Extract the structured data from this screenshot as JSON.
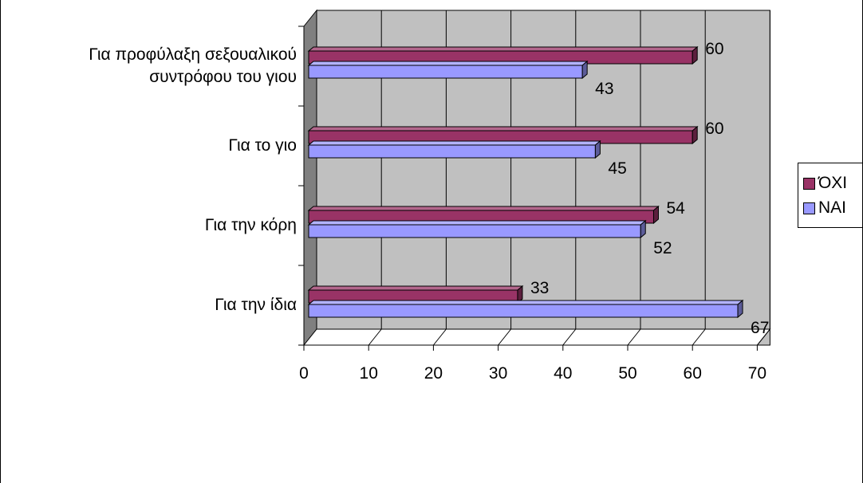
{
  "chart_data": {
    "type": "bar",
    "orientation": "horizontal",
    "categories": [
      "Για την ίδια",
      "Για την κόρη",
      "Για το γιο",
      "Για προφύλαξη σεξουαλικού\nσυντρόφου του γιου"
    ],
    "series": [
      {
        "name": "ΌΧΙ",
        "values": [
          33,
          54,
          60,
          60
        ],
        "color": "#993366"
      },
      {
        "name": "ΝΑΙ",
        "values": [
          67,
          52,
          45,
          43
        ],
        "color": "#9999ff"
      }
    ],
    "x_ticks": [
      "0",
      "10",
      "20",
      "30",
      "40",
      "50",
      "60",
      "70"
    ],
    "xlim": [
      0,
      70
    ],
    "grid": true,
    "legend_position": "right",
    "plot_background": "#c0c0c0",
    "wall_side_color": "#808080"
  }
}
